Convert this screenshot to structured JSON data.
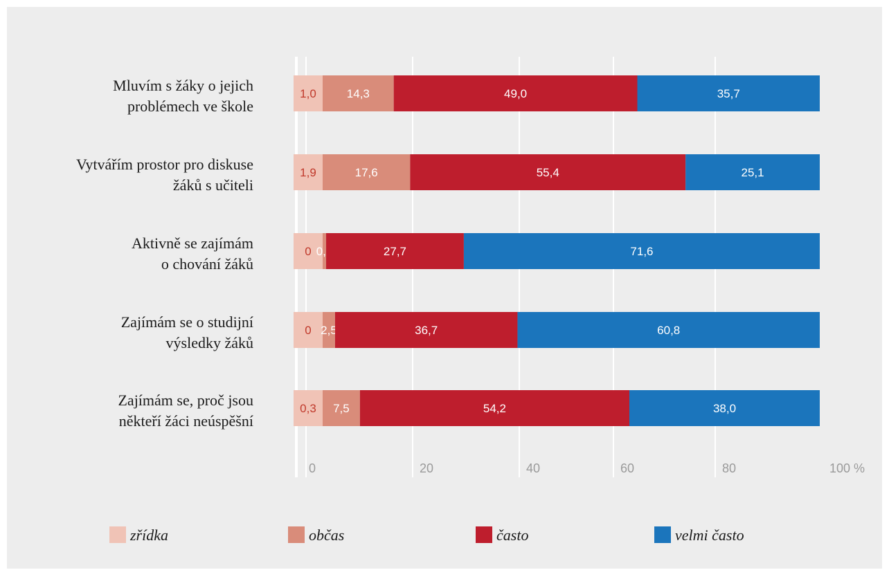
{
  "chart_data": {
    "type": "bar",
    "orientation": "horizontal",
    "stacked": true,
    "categories": [
      [
        "Mluvím s žáky o jejich",
        "problémech ve škole"
      ],
      [
        "Vytvářím prostor pro diskuse",
        "žáků s učiteli"
      ],
      [
        "Aktivně se zajímám",
        "o chování žáků"
      ],
      [
        "Zajímám se o studijní",
        "výsledky žáků"
      ],
      [
        "Zajímám se, proč jsou",
        "někteří žáci neúspěšní"
      ]
    ],
    "series": [
      {
        "name": "zřídka",
        "color": "#f0c3b6",
        "label_color": "#c0392b",
        "values": [
          1.0,
          1.9,
          0,
          0,
          0.3
        ],
        "labels": [
          "1,0",
          "1,9",
          "0",
          "0",
          "0,3"
        ]
      },
      {
        "name": "občas",
        "color": "#d98c7a",
        "label_color": "#ffffff",
        "values": [
          14.3,
          17.6,
          0.7,
          2.5,
          7.5
        ],
        "labels": [
          "14,3",
          "17,6",
          "0,7",
          "2,5",
          "7,5"
        ]
      },
      {
        "name": "často",
        "color": "#be1e2d",
        "label_color": "#ffffff",
        "values": [
          49.0,
          55.4,
          27.7,
          36.7,
          54.2
        ],
        "labels": [
          "49,0",
          "55,4",
          "27,7",
          "36,7",
          "54,2"
        ]
      },
      {
        "name": "velmi často",
        "color": "#1b75bc",
        "label_color": "#ffffff",
        "values": [
          35.7,
          25.1,
          71.6,
          60.8,
          38.0
        ],
        "labels": [
          "35,7",
          "25,1",
          "71,6",
          "60,8",
          "38,0"
        ]
      }
    ],
    "xlim": [
      0,
      100
    ],
    "x_ticks": [
      0,
      20,
      40,
      60,
      80,
      100
    ],
    "x_tick_labels": [
      "0",
      "20",
      "40",
      "60",
      "80",
      "100 %"
    ],
    "grid": true,
    "legend_position": "bottom"
  }
}
